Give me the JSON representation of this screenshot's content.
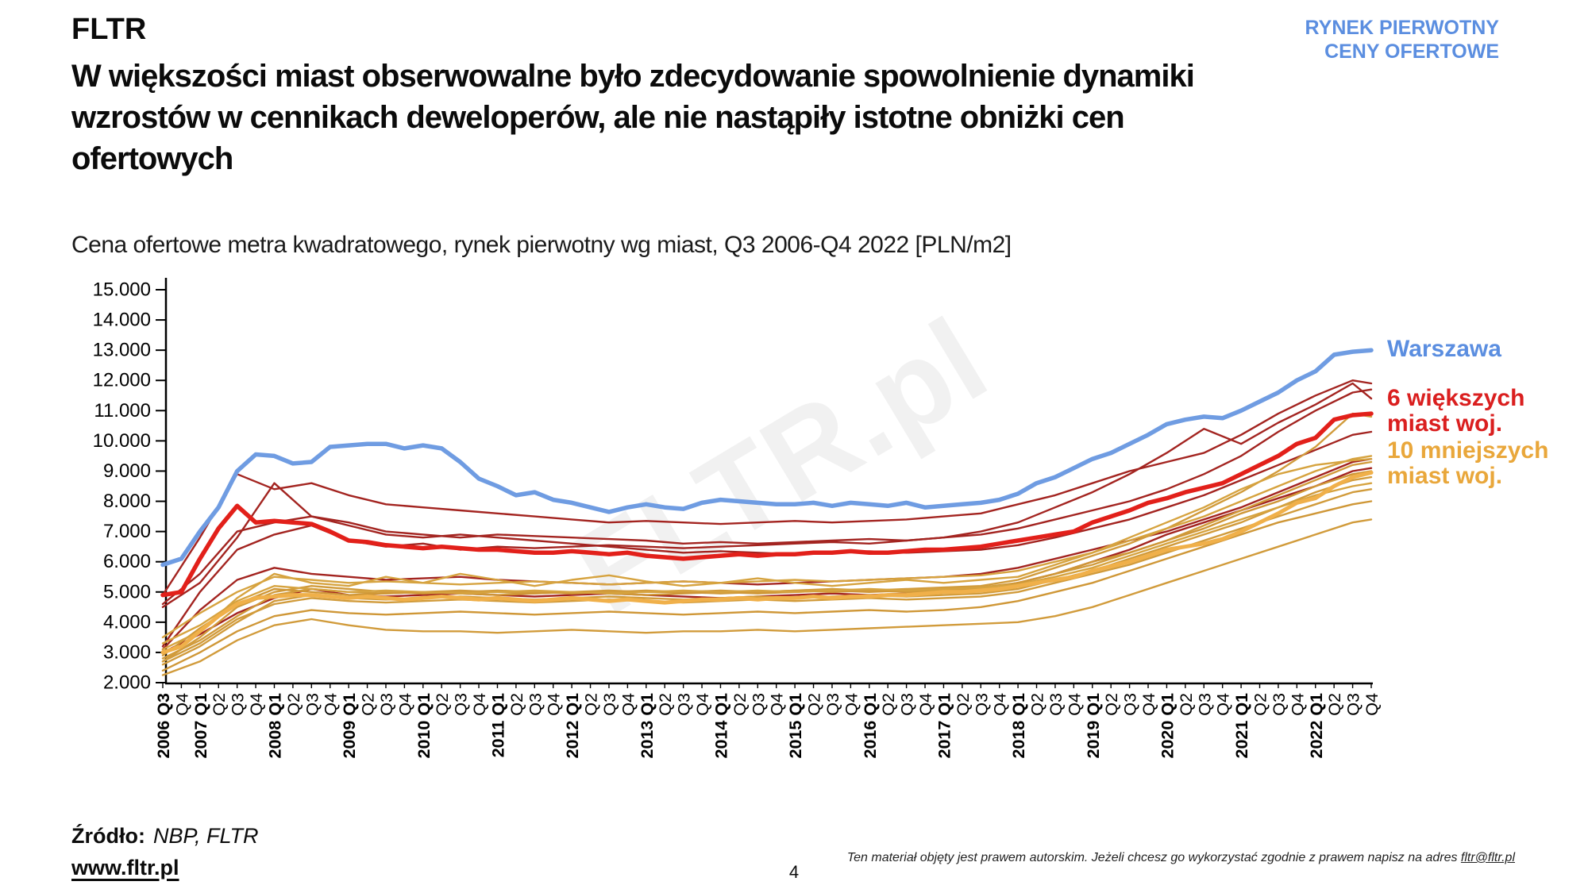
{
  "header": {
    "logo": "FLTR",
    "market_label": "RYNEK PIERWOTNY\nCENY OFERTOWE"
  },
  "title": {
    "line1": "W większości miast obserwowalne było zdecydowanie spowolnienie dynamiki",
    "line2": "wzrostów w cennikach deweloperów, ale nie nastąpiły istotne obniżki cen",
    "line3": "ofertowych"
  },
  "subtitle": "Cena ofertowe metra kwadratowego, rynek pierwotny wg miast, Q3 2006-Q4 2022 [PLN/m2]",
  "watermark": "FLTR.pl",
  "legend": {
    "warszawa": "Warszawa",
    "big6": "6 większych\nmiast woj.",
    "small10": "10 mniejszych\nmiast woj."
  },
  "footer": {
    "source_label": "Źródło:",
    "source_value": "NBP, FLTR",
    "website": "www.fltr.pl",
    "page_number": "4",
    "copyright_text": "Ten materiał objęty jest prawem autorskim. Jeżeli chcesz go wykorzystać zgodnie z prawem napisz na adres ",
    "copyright_email": "fltr@fltr.pl"
  },
  "colors": {
    "accent_blue": "#5b8ee0",
    "line_warszawa": "#6f9ce2",
    "line_big6_avg": "#e2201a",
    "line_big6_city": "#a32420",
    "line_small10_avg": "#f0b04a",
    "line_small10_city": "#d19b3b",
    "text": "#0b0b0b",
    "watermark": "#f1f1f1"
  },
  "chart_data": {
    "type": "line",
    "title": "Cena ofertowe metra kwadratowego, rynek pierwotny wg miast, Q3 2006-Q4 2022 [PLN/m2]",
    "xlabel": "",
    "ylabel": "",
    "ylim": [
      2000,
      15000
    ],
    "grid": false,
    "legend_position": "right",
    "yticks": [
      {
        "label": "15.000",
        "value": 15000
      },
      {
        "label": "14.000",
        "value": 14000
      },
      {
        "label": "13.000",
        "value": 13000
      },
      {
        "label": "12.000",
        "value": 12000
      },
      {
        "label": "11.000",
        "value": 11000
      },
      {
        "label": "10.000",
        "value": 10000
      },
      {
        "label": "9.000",
        "value": 9000
      },
      {
        "label": "8.000",
        "value": 8000
      },
      {
        "label": "7.000",
        "value": 7000
      },
      {
        "label": "6.000",
        "value": 6000
      },
      {
        "label": "5.000",
        "value": 5000
      },
      {
        "label": "4.000",
        "value": 4000
      },
      {
        "label": "3.000",
        "value": 3000
      },
      {
        "label": "2.000",
        "value": 2000
      }
    ],
    "x_labels": [
      "2006 Q3",
      "Q4",
      "2007 Q1",
      "Q2",
      "Q3",
      "Q4",
      "2008 Q1",
      "Q2",
      "Q3",
      "Q4",
      "2009 Q1",
      "Q2",
      "Q3",
      "Q4",
      "2010 Q1",
      "Q2",
      "Q3",
      "Q4",
      "2011 Q1",
      "Q2",
      "Q3",
      "Q4",
      "2012 Q1",
      "Q2",
      "Q3",
      "Q4",
      "2013 Q1",
      "Q2",
      "Q3",
      "Q4",
      "2014 Q1",
      "Q2",
      "Q3",
      "Q4",
      "2015 Q1",
      "Q2",
      "Q3",
      "Q4",
      "2016 Q1",
      "Q2",
      "Q3",
      "Q4",
      "2017 Q1",
      "Q2",
      "Q3",
      "Q4",
      "2018 Q1",
      "Q2",
      "Q3",
      "Q4",
      "2019 Q1",
      "Q2",
      "Q3",
      "Q4",
      "2020 Q1",
      "Q2",
      "Q3",
      "Q4",
      "2021 Q1",
      "Q2",
      "Q3",
      "Q4",
      "2022 Q1",
      "Q2",
      "Q3",
      "Q4"
    ],
    "thin_x": [
      0,
      2,
      4,
      6,
      8,
      10,
      12,
      14,
      16,
      18,
      20,
      22,
      24,
      26,
      28,
      30,
      32,
      34,
      36,
      38,
      40,
      42,
      44,
      46,
      48,
      50,
      52,
      54,
      56,
      58,
      60,
      62,
      64,
      65
    ],
    "series": [
      {
        "name": "6 większych miast woj. — miasto 1",
        "color": "#a32420",
        "width": 2.4,
        "sparse": true,
        "values": [
          4900,
          6800,
          8900,
          8400,
          8600,
          8200,
          7900,
          7800,
          7700,
          7600,
          7500,
          7400,
          7300,
          7350,
          7300,
          7250,
          7300,
          7350,
          7300,
          7350,
          7400,
          7500,
          7600,
          7900,
          8200,
          8600,
          9000,
          9300,
          9600,
          10200,
          10900,
          11500,
          12000,
          11900
        ]
      },
      {
        "name": "6 większych miast woj. — miasto 2",
        "color": "#a32420",
        "width": 2.4,
        "sparse": true,
        "values": [
          4600,
          5600,
          7000,
          7300,
          7500,
          7300,
          7000,
          6900,
          6800,
          6900,
          6850,
          6800,
          6750,
          6700,
          6600,
          6650,
          6600,
          6650,
          6700,
          6750,
          6700,
          6800,
          6900,
          7100,
          7400,
          7700,
          8000,
          8400,
          8900,
          9500,
          10300,
          11000,
          11600,
          11700
        ]
      },
      {
        "name": "6 większych miast woj. — miasto 3",
        "color": "#a32420",
        "width": 2.4,
        "sparse": true,
        "values": [
          3200,
          5000,
          6400,
          6900,
          7200,
          6700,
          6500,
          6600,
          6400,
          6500,
          6450,
          6500,
          6550,
          6500,
          6450,
          6500,
          6550,
          6600,
          6650,
          6600,
          6700,
          6800,
          7000,
          7300,
          7800,
          8300,
          8900,
          9600,
          10400,
          9900,
          10600,
          11200,
          11900,
          11400
        ]
      },
      {
        "name": "6 większych miast woj. — miasto 4",
        "color": "#a32420",
        "width": 2.4,
        "sparse": true,
        "values": [
          4500,
          5300,
          6800,
          8600,
          7500,
          7200,
          6900,
          6800,
          6900,
          6800,
          6700,
          6600,
          6500,
          6400,
          6300,
          6350,
          6300,
          6250,
          6300,
          6350,
          6300,
          6350,
          6400,
          6550,
          6800,
          7100,
          7400,
          7800,
          8200,
          8700,
          9200,
          9700,
          10200,
          10300
        ]
      },
      {
        "name": "6 większych miast woj. — miasto 5",
        "color": "#a32420",
        "width": 2.4,
        "sparse": true,
        "values": [
          3100,
          4400,
          5400,
          5800,
          5600,
          5500,
          5400,
          5450,
          5500,
          5400,
          5350,
          5300,
          5250,
          5300,
          5350,
          5300,
          5250,
          5300,
          5350,
          5400,
          5450,
          5500,
          5600,
          5800,
          6100,
          6400,
          6700,
          7000,
          7400,
          7800,
          8300,
          8800,
          9300,
          9400
        ]
      },
      {
        "name": "6 większych miast woj. — miasto 6",
        "color": "#a32420",
        "width": 2.4,
        "sparse": true,
        "values": [
          3000,
          3600,
          4300,
          4800,
          5100,
          4900,
          4850,
          4900,
          4950,
          4900,
          4850,
          4900,
          4950,
          4900,
          4850,
          4800,
          4850,
          4900,
          4950,
          4900,
          4950,
          5000,
          5100,
          5300,
          5600,
          6000,
          6400,
          6900,
          7300,
          7700,
          8100,
          8500,
          9000,
          9100
        ]
      },
      {
        "name": "10 mniejszych miast woj. — miasto 1",
        "color": "#d19b3b",
        "width": 2.4,
        "sparse": true,
        "values": [
          2800,
          3400,
          4200,
          4900,
          5100,
          5000,
          4950,
          5000,
          5050,
          5000,
          4950,
          5000,
          5050,
          5000,
          5000,
          5050,
          5000,
          5050,
          5100,
          5050,
          5100,
          5150,
          5200,
          5400,
          5800,
          6200,
          6600,
          7100,
          7700,
          8300,
          9000,
          9800,
          10900,
          10800
        ]
      },
      {
        "name": "10 mniejszych miast woj. — miasto 2",
        "color": "#d6a33f",
        "width": 2.4,
        "sparse": true,
        "values": [
          3500,
          4300,
          5000,
          5500,
          5400,
          5300,
          5350,
          5300,
          5250,
          5300,
          5350,
          5300,
          5250,
          5300,
          5350,
          5300,
          5350,
          5400,
          5350,
          5400,
          5450,
          5500,
          5550,
          5700,
          6000,
          6300,
          6700,
          7100,
          7500,
          8000,
          8500,
          9000,
          9400,
          9500
        ]
      },
      {
        "name": "10 mniejszych miast woj. — miasto 3",
        "color": "#d19b3b",
        "width": 2.4,
        "sparse": true,
        "values": [
          2700,
          3500,
          4500,
          5000,
          5200,
          5100,
          5000,
          4950,
          5000,
          5050,
          5000,
          4950,
          5000,
          5050,
          5000,
          4950,
          5000,
          5050,
          5000,
          5050,
          5000,
          5050,
          5100,
          5300,
          5600,
          5900,
          6300,
          6700,
          7200,
          7700,
          8200,
          8700,
          9200,
          9300
        ]
      },
      {
        "name": "10 mniejszych miast woj. — miasto 4",
        "color": "#cf9737",
        "width": 2.4,
        "sparse": true,
        "values": [
          2900,
          3800,
          4600,
          5100,
          5000,
          4900,
          4950,
          5000,
          4950,
          4900,
          4950,
          5000,
          4950,
          4900,
          4950,
          5000,
          4950,
          5000,
          5050,
          5000,
          5050,
          5100,
          5150,
          5300,
          5600,
          6000,
          6300,
          6700,
          7100,
          7600,
          8000,
          8500,
          8900,
          9000
        ]
      },
      {
        "name": "10 mniejszych miast woj. — miasto 5",
        "color": "#d19b3b",
        "width": 2.4,
        "sparse": true,
        "values": [
          2600,
          3200,
          4000,
          4700,
          4900,
          4800,
          4750,
          4800,
          4850,
          4800,
          4750,
          4800,
          4850,
          4800,
          4750,
          4800,
          4850,
          4800,
          4850,
          4900,
          4850,
          4900,
          4950,
          5100,
          5400,
          5700,
          6100,
          6500,
          6900,
          7300,
          7800,
          8300,
          8700,
          8800
        ]
      },
      {
        "name": "10 mniejszych miast woj. — miasto 6",
        "color": "#d6a33f",
        "width": 2.4,
        "sparse": true,
        "values": [
          3300,
          3900,
          4700,
          5200,
          5100,
          5000,
          5050,
          5000,
          4950,
          5000,
          5050,
          5000,
          4950,
          5000,
          5050,
          5000,
          5050,
          5000,
          5050,
          5100,
          5050,
          5100,
          5150,
          5250,
          5500,
          5800,
          6200,
          6600,
          7000,
          7400,
          7800,
          8200,
          8500,
          8600
        ]
      },
      {
        "name": "10 mniejszych miast woj. — miasto 7",
        "color": "#d19b3b",
        "width": 2.4,
        "sparse": true,
        "values": [
          2700,
          3300,
          4100,
          4600,
          4800,
          4700,
          4650,
          4700,
          4750,
          4700,
          4650,
          4700,
          4750,
          4700,
          4650,
          4700,
          4750,
          4700,
          4750,
          4800,
          4750,
          4800,
          4850,
          5000,
          5300,
          5600,
          5900,
          6300,
          6700,
          7100,
          7500,
          7900,
          8300,
          8400
        ]
      },
      {
        "name": "10 mniejszych miast woj. — miasto 8",
        "color": "#cf9737",
        "width": 2.4,
        "sparse": true,
        "values": [
          2400,
          3000,
          3700,
          4200,
          4400,
          4300,
          4250,
          4300,
          4350,
          4300,
          4250,
          4300,
          4350,
          4300,
          4250,
          4300,
          4350,
          4300,
          4350,
          4400,
          4350,
          4400,
          4500,
          4700,
          5000,
          5300,
          5700,
          6100,
          6500,
          6900,
          7300,
          7600,
          7900,
          8000
        ]
      },
      {
        "name": "10 mniejszych miast woj. — miasto 9",
        "color": "#d19b3b",
        "width": 2.4,
        "sparse": true,
        "values": [
          2250,
          2700,
          3400,
          3900,
          4100,
          3900,
          3750,
          3700,
          3700,
          3650,
          3700,
          3750,
          3700,
          3650,
          3700,
          3700,
          3750,
          3700,
          3750,
          3800,
          3850,
          3900,
          3950,
          4000,
          4200,
          4500,
          4900,
          5300,
          5700,
          6100,
          6500,
          6900,
          7300,
          7400
        ]
      },
      {
        "name": "10 mniejszych miast woj. — miasto 10",
        "color": "#d6a33f",
        "width": 2.4,
        "sparse": true,
        "values": [
          3100,
          3700,
          4800,
          5600,
          5300,
          5200,
          5500,
          5300,
          5600,
          5400,
          5200,
          5400,
          5550,
          5350,
          5200,
          5300,
          5450,
          5300,
          5200,
          5300,
          5400,
          5300,
          5400,
          5500,
          5900,
          6300,
          6800,
          7300,
          7800,
          8400,
          8900,
          9200,
          9350,
          9400
        ]
      },
      {
        "name": "10 mniejszych miast woj. (średnia)",
        "color": "#f0b04a",
        "width": 5,
        "sparse": false,
        "values": [
          3000,
          3200,
          3700,
          4200,
          4600,
          4800,
          4850,
          4900,
          4900,
          4850,
          4800,
          4850,
          4800,
          4750,
          4800,
          4850,
          4800,
          4750,
          4800,
          4750,
          4700,
          4750,
          4800,
          4750,
          4700,
          4750,
          4700,
          4650,
          4700,
          4750,
          4750,
          4800,
          4750,
          4800,
          4800,
          4850,
          4800,
          4850,
          4850,
          4900,
          4900,
          4950,
          5000,
          5000,
          5050,
          5100,
          5200,
          5300,
          5400,
          5500,
          5700,
          5850,
          6000,
          6200,
          6400,
          6500,
          6600,
          6750,
          7000,
          7300,
          7600,
          7950,
          8100,
          8500,
          8800,
          8950
        ]
      },
      {
        "name": "6 większych miast woj. (średnia)",
        "color": "#e2201a",
        "width": 5.5,
        "sparse": false,
        "values": [
          4900,
          5000,
          6100,
          7100,
          7850,
          7300,
          7350,
          7300,
          7250,
          7000,
          6700,
          6650,
          6550,
          6500,
          6450,
          6500,
          6450,
          6400,
          6400,
          6350,
          6300,
          6300,
          6350,
          6300,
          6250,
          6300,
          6200,
          6150,
          6100,
          6150,
          6200,
          6250,
          6200,
          6250,
          6250,
          6300,
          6300,
          6350,
          6300,
          6300,
          6350,
          6400,
          6400,
          6450,
          6500,
          6600,
          6700,
          6800,
          6900,
          7000,
          7300,
          7500,
          7700,
          7950,
          8100,
          8300,
          8450,
          8600,
          8900,
          9200,
          9500,
          9900,
          10100,
          10700,
          10850,
          10900
        ]
      },
      {
        "name": "Warszawa",
        "color": "#6f9ce2",
        "width": 5.5,
        "sparse": false,
        "values": [
          5900,
          6100,
          7000,
          7800,
          9000,
          9550,
          9500,
          9250,
          9300,
          9800,
          9850,
          9900,
          9900,
          9750,
          9850,
          9750,
          9300,
          8750,
          8500,
          8200,
          8300,
          8050,
          7950,
          7800,
          7650,
          7800,
          7900,
          7800,
          7750,
          7950,
          8050,
          8000,
          7950,
          7900,
          7900,
          7950,
          7850,
          7950,
          7900,
          7850,
          7950,
          7800,
          7850,
          7900,
          7950,
          8050,
          8250,
          8600,
          8800,
          9100,
          9400,
          9600,
          9900,
          10200,
          10550,
          10700,
          10800,
          10750,
          11000,
          11300,
          11600,
          12000,
          12300,
          12850,
          12950,
          13000
        ]
      }
    ]
  }
}
